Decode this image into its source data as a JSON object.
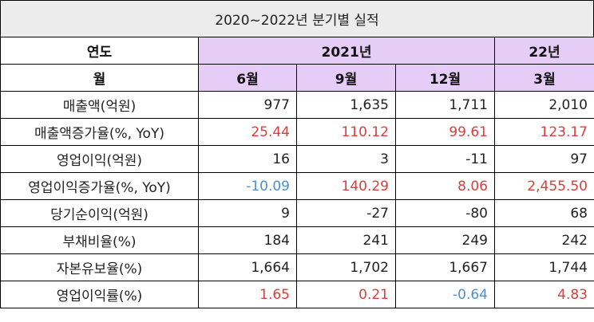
{
  "title": "2020~2022년 분기별 실적",
  "header": {
    "row1": {
      "label": "연도",
      "year_2021": "2021년",
      "year_2022": "22년"
    },
    "row2": {
      "label": "월",
      "months": [
        "6월",
        "9월",
        "12월",
        "3월"
      ]
    }
  },
  "rows": [
    {
      "label": "매출액(억원)",
      "values": [
        "977",
        "1,635",
        "1,711",
        "2,010"
      ]
    },
    {
      "label": "매출액증가율(%, YoY)",
      "values": [
        "25.44",
        "110.12",
        "99.61",
        "123.17"
      ]
    },
    {
      "label": "영업이익(억원)",
      "values": [
        "16",
        "3",
        "-11",
        "97"
      ]
    },
    {
      "label": "영업이익증가율(%, YoY)",
      "values": [
        "-10.09",
        "140.29",
        "8.06",
        "2,455.50"
      ]
    },
    {
      "label": "당기순이익(억원)",
      "values": [
        "9",
        "-27",
        "-80",
        "68"
      ]
    },
    {
      "label": "부채비율(%)",
      "values": [
        "184",
        "241",
        "249",
        "242"
      ]
    },
    {
      "label": "자본유보율(%)",
      "values": [
        "1,664",
        "1,702",
        "1,667",
        "1,744"
      ]
    },
    {
      "label": "영업이익률(%)",
      "values": [
        "1.65",
        "0.21",
        "-0.64",
        "4.83"
      ]
    }
  ],
  "colors": {
    "header_bg": "#e5cdf7",
    "title_bg": "#ececec",
    "positive_highlight": "#e03a3a",
    "negative_highlight": "#4a8fd6"
  }
}
